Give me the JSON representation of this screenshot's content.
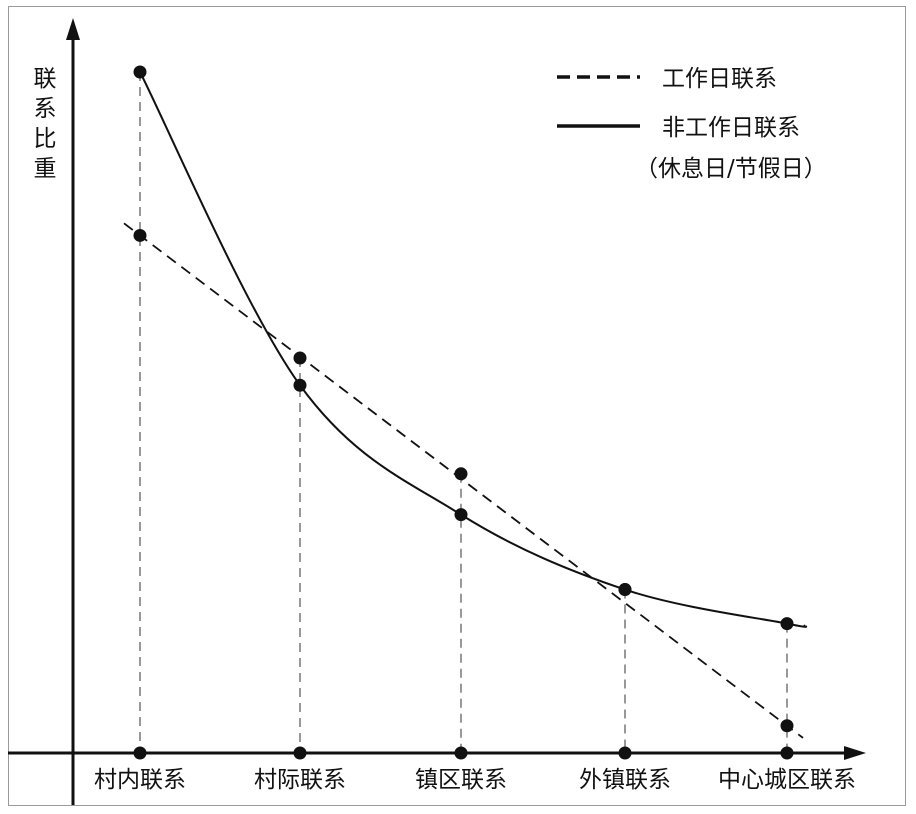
{
  "chart_data": {
    "type": "line",
    "title": "",
    "xlabel": "",
    "ylabel": "联系比重",
    "ylim": [
      0,
      100
    ],
    "categories": [
      "村内联系",
      "村际联系",
      "镇区联系",
      "外镇联系",
      "中心城区联系"
    ],
    "series": [
      {
        "name": "工作日联系",
        "style": "dashed",
        "values": [
          76,
          58,
          41,
          24,
          4
        ]
      },
      {
        "name": "非工作日联系（休息日/节假日）",
        "style": "solid",
        "values": [
          100,
          54,
          35,
          24,
          19
        ]
      }
    ],
    "legend": {
      "placement": "top-right",
      "entries": [
        {
          "lines": [
            "工作日联系"
          ],
          "style": "dashed"
        },
        {
          "lines": [
            "非工作日联系",
            "（休息日/节假日）"
          ],
          "style": "solid"
        }
      ]
    },
    "grid": false,
    "guide_lines": "dashed vertical drop lines from points to x-axis",
    "color": "#111111"
  }
}
